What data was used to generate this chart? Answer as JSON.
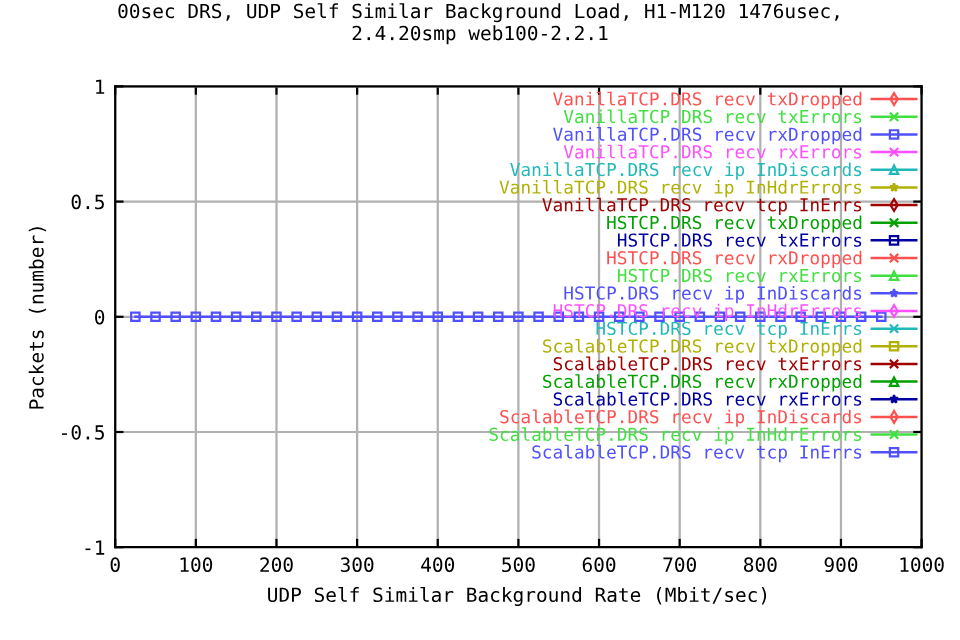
{
  "chart_data": {
    "type": "line",
    "title": "00sec DRS, UDP Self Similar Background Load, H1-M120 1476usec,\n2.4.20smp web100-2.2.1",
    "xlabel": "UDP Self Similar Background Rate (Mbit/sec)",
    "ylabel": "Packets (number)",
    "x": [
      25,
      50,
      75,
      100,
      125,
      150,
      175,
      200,
      225,
      250,
      275,
      300,
      325,
      350,
      375,
      400,
      425,
      450,
      475,
      500,
      525,
      550,
      575,
      600,
      625,
      650,
      675,
      700,
      725,
      750,
      775,
      800,
      825,
      850,
      875,
      900,
      925,
      950
    ],
    "xlim": [
      0,
      1000
    ],
    "xticks": [
      0,
      100,
      200,
      300,
      400,
      500,
      600,
      700,
      800,
      900,
      1000
    ],
    "ylim": [
      -1,
      1
    ],
    "yticks": [
      -1,
      -0.5,
      0,
      0.5,
      1
    ],
    "grid": true,
    "legend": "top right",
    "series": [
      {
        "name": "VanillaTCP.DRS recv txDropped",
        "color": "#ff5050",
        "marker": "diamond",
        "values": [
          null,
          null,
          null,
          null,
          null,
          null,
          null,
          null,
          null,
          null,
          null,
          null,
          null,
          null,
          null,
          null,
          null,
          null,
          null,
          null,
          null,
          null,
          null,
          null,
          null,
          null,
          null,
          null,
          null,
          null,
          null,
          null,
          null,
          null,
          null,
          null,
          null,
          null
        ]
      },
      {
        "name": "VanillaTCP.DRS recv txErrors",
        "color": "#40e040",
        "marker": "cross",
        "values": [
          null,
          null,
          null,
          null,
          null,
          null,
          null,
          null,
          null,
          null,
          null,
          null,
          null,
          null,
          null,
          null,
          null,
          null,
          null,
          null,
          null,
          null,
          null,
          null,
          null,
          null,
          null,
          null,
          null,
          null,
          null,
          null,
          null,
          null,
          null,
          null,
          null,
          null
        ]
      },
      {
        "name": "VanillaTCP.DRS recv rxDropped",
        "color": "#5050ff",
        "marker": "square",
        "values": [
          null,
          null,
          null,
          null,
          null,
          null,
          null,
          null,
          null,
          null,
          null,
          null,
          null,
          null,
          null,
          null,
          null,
          null,
          null,
          null,
          null,
          null,
          null,
          null,
          null,
          null,
          null,
          null,
          null,
          null,
          null,
          null,
          null,
          null,
          null,
          null,
          null,
          null
        ]
      },
      {
        "name": "VanillaTCP.DRS recv rxErrors",
        "color": "#ff50ff",
        "marker": "cross",
        "values": [
          null,
          null,
          null,
          null,
          null,
          null,
          null,
          null,
          null,
          null,
          null,
          null,
          null,
          null,
          null,
          null,
          null,
          null,
          null,
          null,
          null,
          null,
          null,
          null,
          null,
          null,
          null,
          null,
          null,
          null,
          null,
          null,
          null,
          null,
          null,
          null,
          null,
          null
        ]
      },
      {
        "name": "VanillaTCP.DRS recv ip InDiscards",
        "color": "#20b8b8",
        "marker": "triangle",
        "values": [
          null,
          null,
          null,
          null,
          null,
          null,
          null,
          null,
          null,
          null,
          null,
          null,
          null,
          null,
          null,
          null,
          null,
          null,
          null,
          null,
          null,
          null,
          null,
          null,
          null,
          null,
          null,
          null,
          null,
          null,
          null,
          null,
          null,
          null,
          null,
          null,
          null,
          null
        ]
      },
      {
        "name": "VanillaTCP.DRS recv ip InHdrErrors",
        "color": "#b0b000",
        "marker": "star",
        "values": [
          null,
          null,
          null,
          null,
          null,
          null,
          null,
          null,
          null,
          null,
          null,
          null,
          null,
          null,
          null,
          null,
          null,
          null,
          null,
          null,
          null,
          null,
          null,
          null,
          null,
          null,
          null,
          null,
          null,
          null,
          null,
          null,
          null,
          null,
          null,
          null,
          null,
          null
        ]
      },
      {
        "name": "VanillaTCP.DRS recv tcp InErrs",
        "color": "#a00000",
        "marker": "diamond",
        "values": [
          null,
          null,
          null,
          null,
          null,
          null,
          null,
          null,
          null,
          null,
          null,
          null,
          null,
          null,
          null,
          null,
          null,
          null,
          null,
          null,
          null,
          null,
          null,
          null,
          null,
          null,
          null,
          null,
          null,
          null,
          null,
          null,
          null,
          null,
          null,
          null,
          null,
          null
        ]
      },
      {
        "name": "HSTCP.DRS recv txDropped",
        "color": "#00a000",
        "marker": "cross",
        "values": [
          null,
          null,
          null,
          null,
          null,
          null,
          null,
          null,
          null,
          null,
          null,
          null,
          null,
          null,
          null,
          null,
          null,
          null,
          null,
          null,
          null,
          null,
          null,
          null,
          null,
          null,
          null,
          null,
          null,
          null,
          null,
          null,
          null,
          null,
          null,
          null,
          null,
          null
        ]
      },
      {
        "name": "HSTCP.DRS recv txErrors",
        "color": "#0000a0",
        "marker": "square",
        "values": [
          null,
          null,
          null,
          null,
          null,
          null,
          null,
          null,
          null,
          null,
          null,
          null,
          null,
          null,
          null,
          null,
          null,
          null,
          null,
          null,
          null,
          null,
          null,
          null,
          null,
          null,
          null,
          null,
          null,
          null,
          null,
          null,
          null,
          null,
          null,
          null,
          null,
          null
        ]
      },
      {
        "name": "HSTCP.DRS recv rxDropped",
        "color": "#ff5050",
        "marker": "cross",
        "values": [
          null,
          null,
          null,
          null,
          null,
          null,
          null,
          null,
          null,
          null,
          null,
          null,
          null,
          null,
          null,
          null,
          null,
          null,
          null,
          null,
          null,
          null,
          null,
          null,
          null,
          null,
          null,
          null,
          null,
          null,
          null,
          null,
          null,
          null,
          null,
          null,
          null,
          null
        ]
      },
      {
        "name": "HSTCP.DRS recv rxErrors",
        "color": "#40e040",
        "marker": "triangle",
        "values": [
          null,
          null,
          null,
          null,
          null,
          null,
          null,
          null,
          null,
          null,
          null,
          null,
          null,
          null,
          null,
          null,
          null,
          null,
          null,
          null,
          null,
          null,
          null,
          null,
          null,
          null,
          null,
          null,
          null,
          null,
          null,
          null,
          null,
          null,
          null,
          null,
          null,
          null
        ]
      },
      {
        "name": "HSTCP.DRS recv ip InDiscards",
        "color": "#5050ff",
        "marker": "star",
        "values": [
          null,
          null,
          null,
          null,
          null,
          null,
          null,
          null,
          null,
          null,
          null,
          null,
          null,
          null,
          null,
          null,
          null,
          null,
          null,
          null,
          null,
          null,
          null,
          null,
          null,
          null,
          null,
          null,
          null,
          null,
          null,
          null,
          null,
          null,
          null,
          null,
          null,
          null
        ]
      },
      {
        "name": "HSTCP.DRS recv ip InHdrErrors",
        "color": "#ff50ff",
        "marker": "diamond",
        "values": [
          null,
          null,
          null,
          null,
          null,
          null,
          null,
          null,
          null,
          null,
          null,
          null,
          null,
          null,
          null,
          null,
          null,
          null,
          null,
          null,
          null,
          null,
          null,
          null,
          null,
          null,
          null,
          null,
          null,
          null,
          null,
          null,
          null,
          null,
          null,
          null,
          null,
          null
        ]
      },
      {
        "name": "HSTCP.DRS recv tcp InErrs",
        "color": "#20b8b8",
        "marker": "cross",
        "values": [
          null,
          null,
          null,
          null,
          null,
          null,
          null,
          null,
          null,
          null,
          null,
          null,
          null,
          null,
          null,
          null,
          null,
          null,
          null,
          null,
          null,
          null,
          null,
          null,
          null,
          null,
          null,
          null,
          null,
          null,
          null,
          null,
          null,
          null,
          null,
          null,
          null,
          null
        ]
      },
      {
        "name": "ScalableTCP.DRS recv txDropped",
        "color": "#b0b000",
        "marker": "square",
        "values": [
          null,
          null,
          null,
          null,
          null,
          null,
          null,
          null,
          null,
          null,
          null,
          null,
          null,
          null,
          null,
          null,
          null,
          null,
          null,
          null,
          null,
          null,
          null,
          null,
          null,
          null,
          null,
          null,
          null,
          null,
          null,
          null,
          null,
          null,
          null,
          null,
          null,
          null
        ]
      },
      {
        "name": "ScalableTCP.DRS recv txErrors",
        "color": "#a00000",
        "marker": "cross",
        "values": [
          null,
          null,
          null,
          null,
          null,
          null,
          null,
          null,
          null,
          null,
          null,
          null,
          null,
          null,
          null,
          null,
          null,
          null,
          null,
          null,
          null,
          null,
          null,
          null,
          null,
          null,
          null,
          null,
          null,
          null,
          null,
          null,
          null,
          null,
          null,
          null,
          null,
          null
        ]
      },
      {
        "name": "ScalableTCP.DRS recv rxDropped",
        "color": "#00a000",
        "marker": "triangle",
        "values": [
          null,
          null,
          null,
          null,
          null,
          null,
          null,
          null,
          null,
          null,
          null,
          null,
          null,
          null,
          null,
          null,
          null,
          null,
          null,
          null,
          null,
          null,
          null,
          null,
          null,
          null,
          null,
          null,
          null,
          null,
          null,
          null,
          null,
          null,
          null,
          null,
          null,
          null
        ]
      },
      {
        "name": "ScalableTCP.DRS recv rxErrors",
        "color": "#0000a0",
        "marker": "star",
        "values": [
          null,
          null,
          null,
          null,
          null,
          null,
          null,
          null,
          null,
          null,
          null,
          null,
          null,
          null,
          null,
          null,
          null,
          null,
          null,
          null,
          null,
          null,
          null,
          null,
          null,
          null,
          null,
          null,
          null,
          null,
          null,
          null,
          null,
          null,
          null,
          null,
          null,
          null
        ]
      },
      {
        "name": "ScalableTCP.DRS recv ip InDiscards",
        "color": "#ff5050",
        "marker": "diamond",
        "values": [
          null,
          null,
          null,
          null,
          null,
          null,
          null,
          null,
          null,
          null,
          null,
          null,
          null,
          null,
          null,
          null,
          null,
          null,
          null,
          null,
          null,
          null,
          null,
          null,
          null,
          null,
          null,
          null,
          null,
          null,
          null,
          null,
          null,
          null,
          null,
          null,
          null,
          null
        ]
      },
      {
        "name": "ScalableTCP.DRS recv ip InHdrErrors",
        "color": "#40e040",
        "marker": "cross",
        "values": [
          null,
          null,
          null,
          null,
          null,
          null,
          null,
          null,
          null,
          null,
          null,
          null,
          null,
          null,
          null,
          null,
          null,
          null,
          null,
          null,
          null,
          null,
          null,
          null,
          null,
          null,
          null,
          null,
          null,
          null,
          null,
          null,
          null,
          null,
          null,
          null,
          null,
          null
        ]
      },
      {
        "name": "ScalableTCP.DRS recv tcp InErrs",
        "color": "#5050ff",
        "marker": "square",
        "values": [
          0,
          0,
          0,
          0,
          0,
          0,
          0,
          0,
          0,
          0,
          0,
          0,
          0,
          0,
          0,
          0,
          0,
          0,
          0,
          0,
          0,
          0,
          0,
          0,
          0,
          0,
          0,
          0,
          0,
          0,
          0,
          0,
          0,
          0,
          0,
          0,
          0,
          0
        ]
      }
    ]
  }
}
